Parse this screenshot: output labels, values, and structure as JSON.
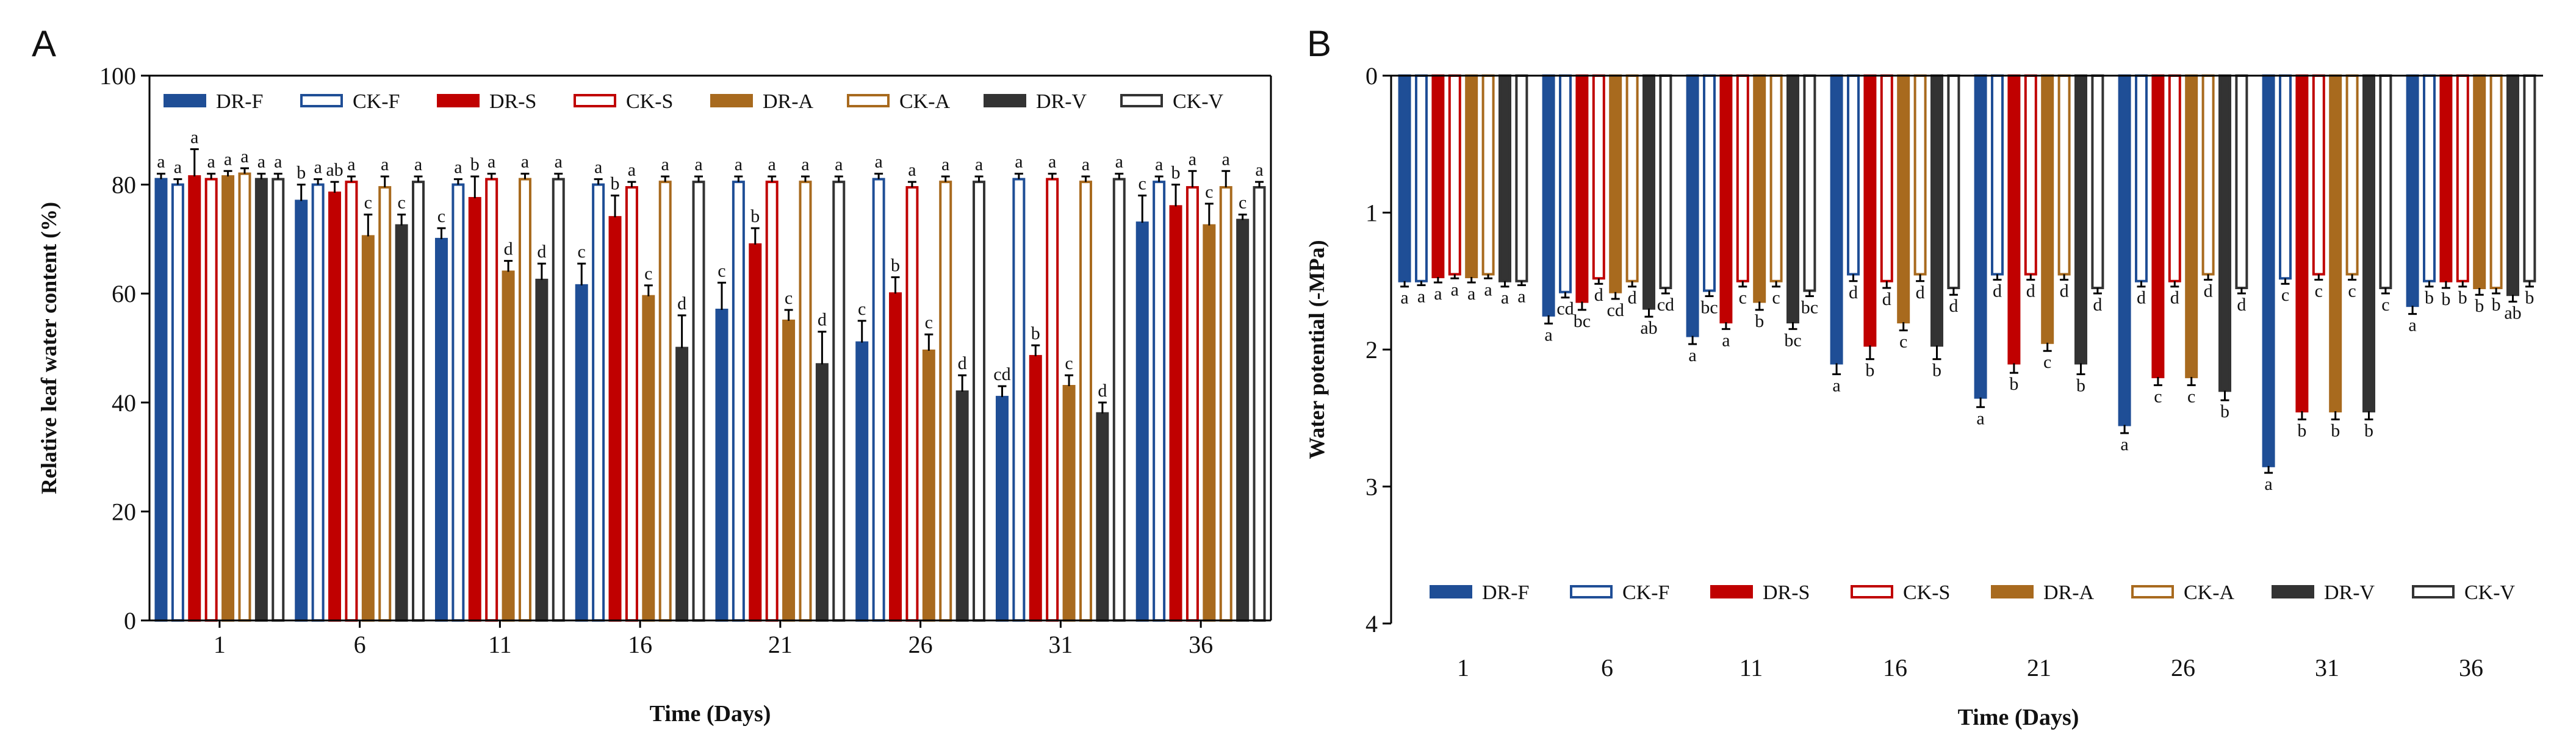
{
  "series_names": [
    "DR-F",
    "CK-F",
    "DR-S",
    "CK-S",
    "DR-A",
    "CK-A",
    "DR-V",
    "CK-V"
  ],
  "series_style": [
    {
      "color": "#1f4e96",
      "filled": true
    },
    {
      "color": "#1f4e96",
      "filled": false
    },
    {
      "color": "#c00000",
      "filled": true
    },
    {
      "color": "#c00000",
      "filled": false
    },
    {
      "color": "#a86a1e",
      "filled": true
    },
    {
      "color": "#a86a1e",
      "filled": false
    },
    {
      "color": "#333333",
      "filled": true
    },
    {
      "color": "#333333",
      "filled": false
    }
  ],
  "chart_data": [
    {
      "panel": "A",
      "type": "bar",
      "title": "",
      "xlabel": "Time (Days)",
      "ylabel": "Relative leaf water content (%)",
      "ylim": [
        0,
        100
      ],
      "yticks": [
        0,
        20,
        40,
        60,
        80,
        100
      ],
      "categories": [
        "1",
        "6",
        "11",
        "16",
        "21",
        "26",
        "31",
        "36"
      ],
      "legend_position": "top",
      "series": [
        {
          "name": "DR-F",
          "values": [
            81,
            77,
            70,
            61.5,
            57,
            51,
            41,
            73
          ],
          "errors": [
            1,
            3,
            2,
            4,
            5,
            4,
            2,
            5
          ],
          "labels": [
            "a",
            "b",
            "c",
            "c",
            "c",
            "c",
            "cd",
            "c"
          ]
        },
        {
          "name": "CK-F",
          "values": [
            80,
            80,
            80,
            80,
            80.5,
            81,
            81,
            80.5
          ],
          "errors": [
            1,
            1,
            1,
            1,
            1,
            1,
            1,
            1
          ],
          "labels": [
            "a",
            "a",
            "a",
            "a",
            "a",
            "a",
            "a",
            "a"
          ]
        },
        {
          "name": "DR-S",
          "values": [
            81.5,
            78.5,
            77.5,
            74,
            69,
            60,
            48.5,
            76
          ],
          "errors": [
            5,
            2,
            4,
            4,
            3,
            3,
            2,
            4
          ],
          "labels": [
            "a",
            "ab",
            "b",
            "b",
            "b",
            "b",
            "b",
            "b"
          ]
        },
        {
          "name": "CK-S",
          "values": [
            81,
            80.5,
            81,
            79.5,
            80.5,
            79.5,
            81,
            79.5
          ],
          "errors": [
            1,
            1,
            1,
            1,
            1,
            1,
            1,
            3
          ],
          "labels": [
            "a",
            "a",
            "a",
            "a",
            "a",
            "a",
            "a",
            "a"
          ]
        },
        {
          "name": "DR-A",
          "values": [
            81.5,
            70.5,
            64,
            59.5,
            55,
            49.5,
            43,
            72.5
          ],
          "errors": [
            1,
            4,
            2,
            2,
            2,
            3,
            2,
            4
          ],
          "labels": [
            "a",
            "c",
            "d",
            "c",
            "c",
            "c",
            "c",
            "c"
          ]
        },
        {
          "name": "CK-A",
          "values": [
            82,
            79.5,
            81,
            80.5,
            80.5,
            80.5,
            80.5,
            79.5
          ],
          "errors": [
            1,
            2,
            1,
            1,
            1,
            1,
            1,
            3
          ],
          "labels": [
            "a",
            "a",
            "a",
            "a",
            "a",
            "a",
            "a",
            "a"
          ]
        },
        {
          "name": "DR-V",
          "values": [
            81,
            72.5,
            62.5,
            50,
            47,
            42,
            38,
            73.5
          ],
          "errors": [
            1,
            2,
            3,
            6,
            6,
            3,
            2,
            1
          ],
          "labels": [
            "a",
            "c",
            "d",
            "d",
            "d",
            "d",
            "d",
            "c"
          ]
        },
        {
          "name": "CK-V",
          "values": [
            81,
            80.5,
            81,
            80.5,
            80.5,
            80.5,
            81,
            79.5
          ],
          "errors": [
            1,
            1,
            1,
            1,
            1,
            1,
            1,
            1
          ],
          "labels": [
            "a",
            "a",
            "a",
            "a",
            "a",
            "a",
            "a",
            "a"
          ]
        }
      ]
    },
    {
      "panel": "B",
      "type": "bar",
      "title": "",
      "xlabel": "Time (Days)",
      "ylabel": "Water potential (-MPa)",
      "ylim": [
        0,
        4
      ],
      "yticks": [
        0,
        1,
        2,
        3,
        4
      ],
      "y_inverted": true,
      "categories": [
        "1",
        "6",
        "11",
        "16",
        "21",
        "26",
        "31",
        "36"
      ],
      "legend_position": "bottom",
      "series": [
        {
          "name": "DR-F",
          "values": [
            1.5,
            1.75,
            1.9,
            2.1,
            2.35,
            2.55,
            2.85,
            1.68
          ],
          "errors": [
            0.04,
            0.06,
            0.06,
            0.08,
            0.07,
            0.06,
            0.05,
            0.06
          ],
          "labels": [
            "a",
            "a",
            "a",
            "a",
            "a",
            "a",
            "a",
            "a"
          ]
        },
        {
          "name": "CK-F",
          "values": [
            1.5,
            1.58,
            1.57,
            1.45,
            1.45,
            1.5,
            1.48,
            1.5
          ],
          "errors": [
            0.03,
            0.04,
            0.04,
            0.05,
            0.04,
            0.04,
            0.04,
            0.04
          ],
          "labels": [
            "a",
            "cd",
            "bc",
            "d",
            "d",
            "d",
            "c",
            "b"
          ]
        },
        {
          "name": "DR-S",
          "values": [
            1.47,
            1.65,
            1.8,
            1.97,
            2.1,
            2.2,
            2.45,
            1.5
          ],
          "errors": [
            0.04,
            0.06,
            0.05,
            0.1,
            0.07,
            0.06,
            0.06,
            0.05
          ],
          "labels": [
            "a",
            "bc",
            "a",
            "b",
            "b",
            "c",
            "b",
            "b"
          ]
        },
        {
          "name": "CK-S",
          "values": [
            1.45,
            1.48,
            1.5,
            1.5,
            1.45,
            1.5,
            1.45,
            1.5
          ],
          "errors": [
            0.03,
            0.04,
            0.04,
            0.05,
            0.04,
            0.04,
            0.04,
            0.04
          ],
          "labels": [
            "a",
            "d",
            "c",
            "d",
            "d",
            "d",
            "c",
            "b"
          ]
        },
        {
          "name": "DR-A",
          "values": [
            1.47,
            1.58,
            1.65,
            1.8,
            1.95,
            2.2,
            2.45,
            1.55
          ],
          "errors": [
            0.04,
            0.05,
            0.06,
            0.06,
            0.06,
            0.06,
            0.06,
            0.05
          ],
          "labels": [
            "a",
            "cd",
            "b",
            "c",
            "c",
            "c",
            "b",
            "b"
          ]
        },
        {
          "name": "CK-A",
          "values": [
            1.45,
            1.5,
            1.5,
            1.45,
            1.45,
            1.45,
            1.45,
            1.55
          ],
          "errors": [
            0.03,
            0.04,
            0.04,
            0.05,
            0.04,
            0.04,
            0.04,
            0.04
          ],
          "labels": [
            "a",
            "d",
            "c",
            "d",
            "d",
            "d",
            "c",
            "b"
          ]
        },
        {
          "name": "DR-V",
          "values": [
            1.5,
            1.7,
            1.8,
            1.97,
            2.1,
            2.3,
            2.45,
            1.6
          ],
          "errors": [
            0.04,
            0.06,
            0.05,
            0.1,
            0.08,
            0.07,
            0.06,
            0.05
          ],
          "labels": [
            "a",
            "ab",
            "bc",
            "b",
            "b",
            "b",
            "b",
            "ab"
          ]
        },
        {
          "name": "CK-V",
          "values": [
            1.5,
            1.55,
            1.57,
            1.55,
            1.55,
            1.55,
            1.55,
            1.5
          ],
          "errors": [
            0.03,
            0.04,
            0.04,
            0.05,
            0.04,
            0.04,
            0.04,
            0.04
          ],
          "labels": [
            "a",
            "cd",
            "bc",
            "d",
            "d",
            "d",
            "c",
            "b"
          ]
        }
      ]
    }
  ]
}
